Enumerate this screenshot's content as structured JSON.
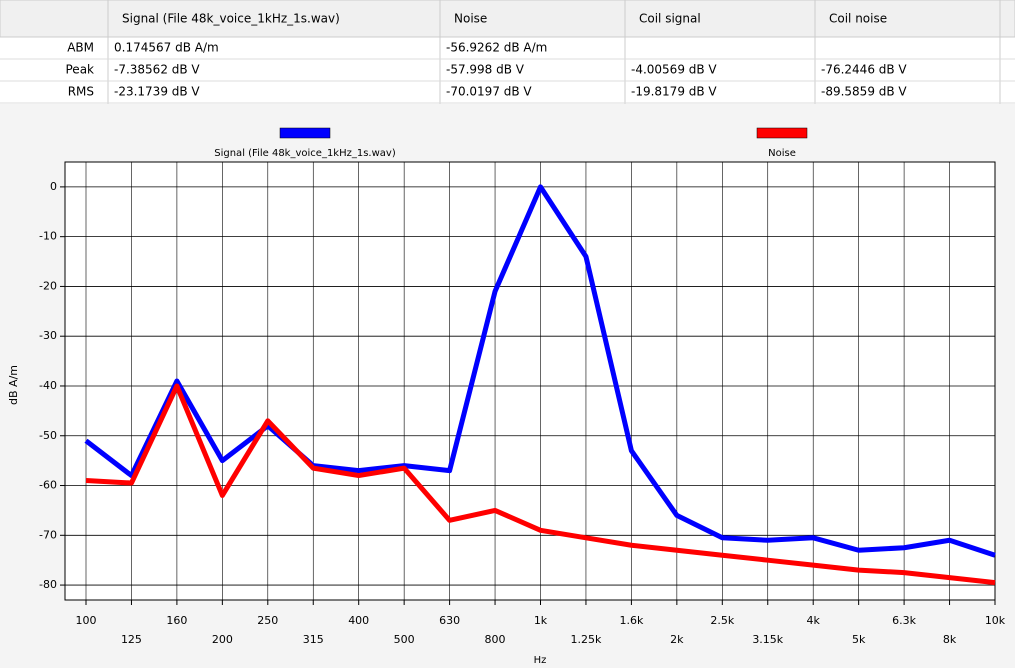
{
  "table": {
    "columns": [
      "Signal (File 48k_voice_1kHz_1s.wav)",
      "Noise",
      "Coil signal",
      "Coil noise"
    ],
    "rows": [
      {
        "label": "ABM",
        "cells": [
          "0.174567 dB A/m",
          "-56.9262 dB A/m"
        ]
      },
      {
        "label": "Peak",
        "cells": [
          "-7.38562 dB V",
          "-57.998 dB V",
          "-4.00569 dB V",
          "-76.2446 dB V"
        ]
      },
      {
        "label": "RMS",
        "cells": [
          "-23.1739 dB V",
          "-70.0197 dB V",
          "-19.8179 dB V",
          "-89.5859 dB V"
        ]
      }
    ]
  },
  "chart_data": {
    "type": "line",
    "x_label": "Hz",
    "y_label": "dB A/m",
    "categories": [
      "100",
      "125",
      "160",
      "200",
      "250",
      "315",
      "400",
      "500",
      "630",
      "800",
      "1k",
      "1.25k",
      "1.6k",
      "2k",
      "2.5k",
      "3.15k",
      "4k",
      "5k",
      "6.3k",
      "8k",
      "10k"
    ],
    "series": [
      {
        "name": "Signal (File 48k_voice_1kHz_1s.wav)",
        "color": "#0000ff",
        "values": [
          -51,
          -58,
          -39,
          -55,
          -48,
          -56,
          -57,
          -56,
          -57,
          -21,
          0,
          -14,
          -53,
          -66,
          -70.5,
          -71,
          -70.5,
          -73,
          -72.5,
          -71,
          -74
        ]
      },
      {
        "name": "Noise",
        "color": "#ff0000",
        "values": [
          -59,
          -59.5,
          -40,
          -62,
          -47,
          -56.5,
          -58,
          -56.5,
          -67,
          -65,
          -69,
          -70.5,
          -72,
          -73,
          -74,
          -75,
          -76,
          -77,
          -77.5,
          -78.5,
          -79.5
        ]
      }
    ],
    "ylim": [
      -83,
      5
    ],
    "yticks": [
      0,
      -10,
      -20,
      -30,
      -40,
      -50,
      -60,
      -70,
      -80
    ],
    "grid": true
  }
}
